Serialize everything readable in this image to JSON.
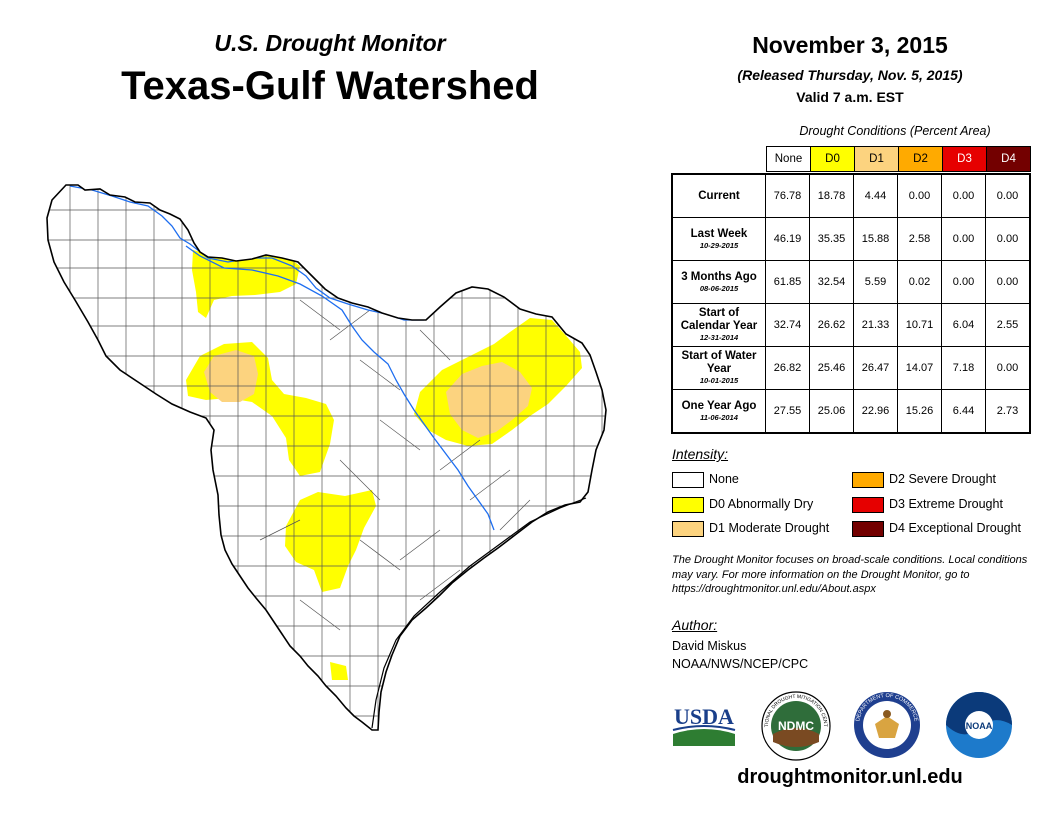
{
  "header": {
    "subtitle": "U.S. Drought Monitor",
    "title": "Texas-Gulf Watershed",
    "date": "November 3, 2015",
    "released": "(Released Thursday, Nov. 5, 2015)",
    "valid": "Valid 7 a.m. EST"
  },
  "table": {
    "caption": "Drought Conditions (Percent Area)",
    "columns": [
      {
        "label": "None",
        "color": "#ffffff",
        "text_color": "#000000"
      },
      {
        "label": "D0",
        "color": "#ffff00",
        "text_color": "#000000"
      },
      {
        "label": "D1",
        "color": "#fcd37f",
        "text_color": "#000000"
      },
      {
        "label": "D2",
        "color": "#ffaa00",
        "text_color": "#000000"
      },
      {
        "label": "D3",
        "color": "#e60000",
        "text_color": "#ffffff"
      },
      {
        "label": "D4",
        "color": "#730000",
        "text_color": "#ffffff"
      }
    ],
    "rows": [
      {
        "label": "Current",
        "date": "",
        "values": [
          "76.78",
          "18.78",
          "4.44",
          "0.00",
          "0.00",
          "0.00"
        ]
      },
      {
        "label": "Last Week",
        "date": "10-29-2015",
        "values": [
          "46.19",
          "35.35",
          "15.88",
          "2.58",
          "0.00",
          "0.00"
        ]
      },
      {
        "label": "3 Months Ago",
        "date": "08-06-2015",
        "values": [
          "61.85",
          "32.54",
          "5.59",
          "0.02",
          "0.00",
          "0.00"
        ]
      },
      {
        "label": "Start of Calendar Year",
        "date": "12-31-2014",
        "values": [
          "32.74",
          "26.62",
          "21.33",
          "10.71",
          "6.04",
          "2.55"
        ]
      },
      {
        "label": "Start of Water Year",
        "date": "10-01-2015",
        "values": [
          "26.82",
          "25.46",
          "26.47",
          "14.07",
          "7.18",
          "0.00"
        ]
      },
      {
        "label": "One Year Ago",
        "date": "11-06-2014",
        "values": [
          "27.55",
          "25.06",
          "22.96",
          "15.26",
          "6.44",
          "2.73"
        ]
      }
    ]
  },
  "legend": {
    "title": "Intensity:",
    "items": [
      {
        "label": "None",
        "color": "#ffffff"
      },
      {
        "label": "D0 Abnormally Dry",
        "color": "#ffff00"
      },
      {
        "label": "D1 Moderate Drought",
        "color": "#fcd37f"
      },
      {
        "label": "D2 Severe Drought",
        "color": "#ffaa00"
      },
      {
        "label": "D3 Extreme Drought",
        "color": "#e60000"
      },
      {
        "label": "D4 Exceptional Drought",
        "color": "#730000"
      }
    ]
  },
  "note": "The Drought Monitor focuses on broad-scale conditions. Local conditions may vary. For more information on the Drought Monitor, go to https://droughtmonitor.unl.edu/About.aspx",
  "author": {
    "title": "Author:",
    "name": "David Miskus",
    "org": "NOAA/NWS/NCEP/CPC"
  },
  "logos": {
    "usda": "USDA",
    "ndmc": "NDMC",
    "noaa": "NOAA",
    "ndmc_ring": "NATIONAL DROUGHT MITIGATION CENTER",
    "commerce_ring": "DEPARTMENT OF COMMERCE"
  },
  "website": "droughtmonitor.unl.edu",
  "colors": {
    "river": "#1e6ef0",
    "county_line": "#333333"
  }
}
